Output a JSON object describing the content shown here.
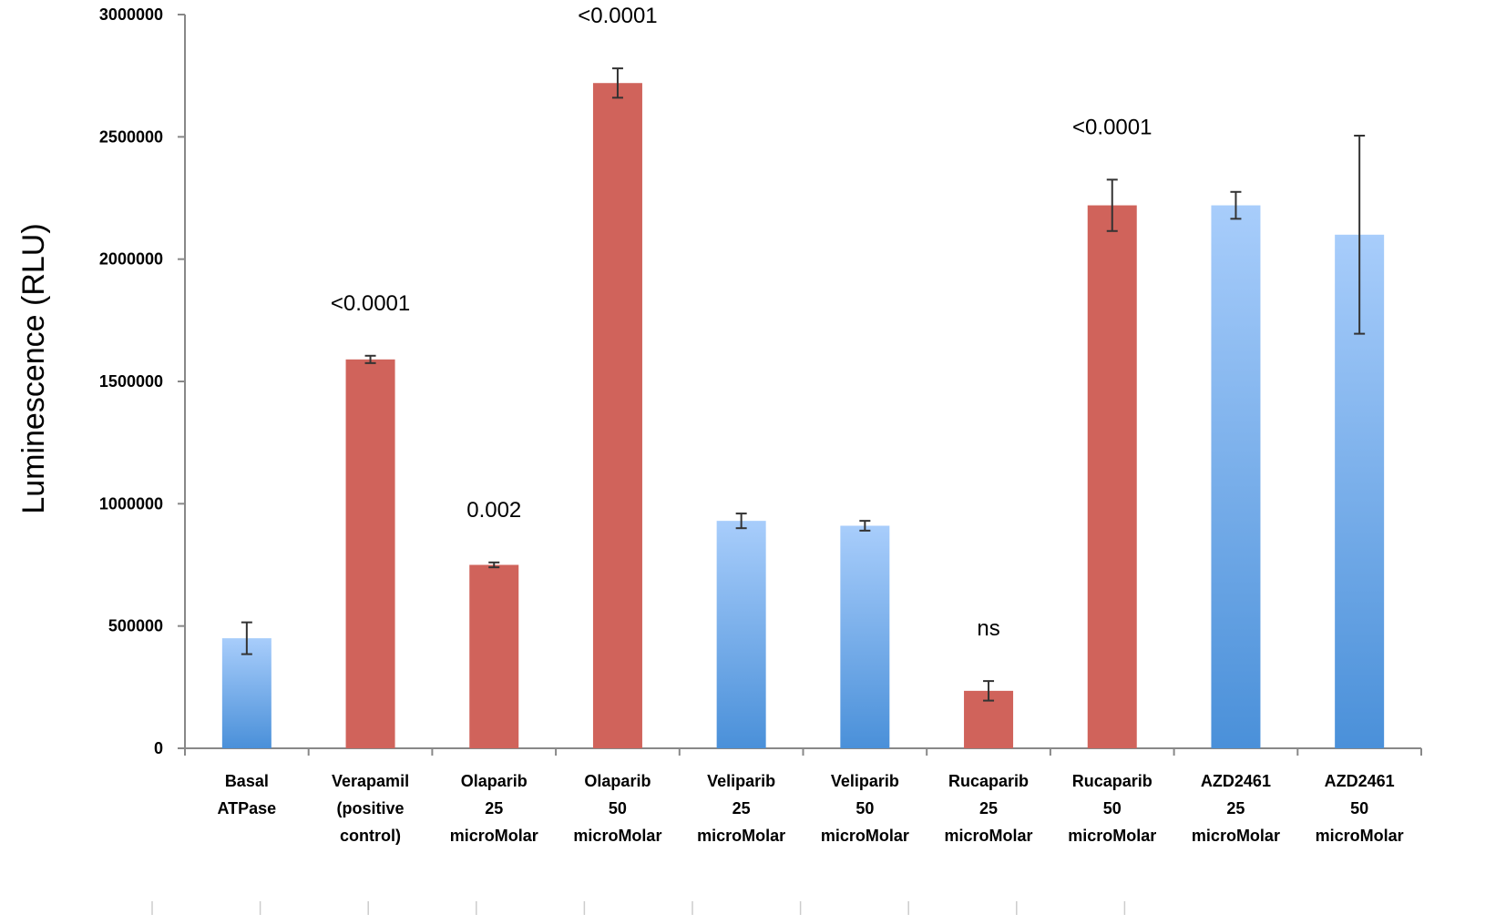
{
  "chart_data": {
    "type": "bar",
    "ylabel": "Luminescence (RLU)",
    "xlabel": "",
    "ylim": [
      0,
      3000000
    ],
    "yticks": [
      0,
      500000,
      1000000,
      1500000,
      2000000,
      2500000,
      3000000
    ],
    "grid": false,
    "legend": "none",
    "colors": {
      "red": "#d0635b",
      "blue_top": "#a8cdfb",
      "blue_bottom": "#4a90d9",
      "axis": "#888888",
      "error": "#333333"
    },
    "categories": [
      [
        "Basal",
        "ATPase"
      ],
      [
        "Verapamil",
        "(positive",
        "control)"
      ],
      [
        "Olaparib",
        "25",
        "microMolar"
      ],
      [
        "Olaparib",
        "50",
        "microMolar"
      ],
      [
        "Veliparib",
        "25",
        "microMolar"
      ],
      [
        "Veliparib",
        "50",
        "microMolar"
      ],
      [
        "Rucaparib",
        "25",
        "microMolar"
      ],
      [
        "Rucaparib",
        "50",
        "microMolar"
      ],
      [
        "AZD2461",
        "25",
        "microMolar"
      ],
      [
        "AZD2461",
        "50",
        "microMolar"
      ]
    ],
    "values": [
      450000,
      1590000,
      750000,
      2720000,
      930000,
      910000,
      235000,
      2220000,
      2220000,
      2100000
    ],
    "errors": [
      65000,
      15000,
      10000,
      60000,
      30000,
      20000,
      40000,
      105000,
      55000,
      405000
    ],
    "bar_colors": [
      "blue",
      "red",
      "red",
      "red",
      "blue",
      "blue",
      "red",
      "red",
      "blue",
      "blue"
    ],
    "annotations": [
      "",
      "<0.0001",
      "0.002",
      "<0.0001",
      "",
      "",
      "ns",
      "<0.0001",
      "",
      ""
    ]
  }
}
